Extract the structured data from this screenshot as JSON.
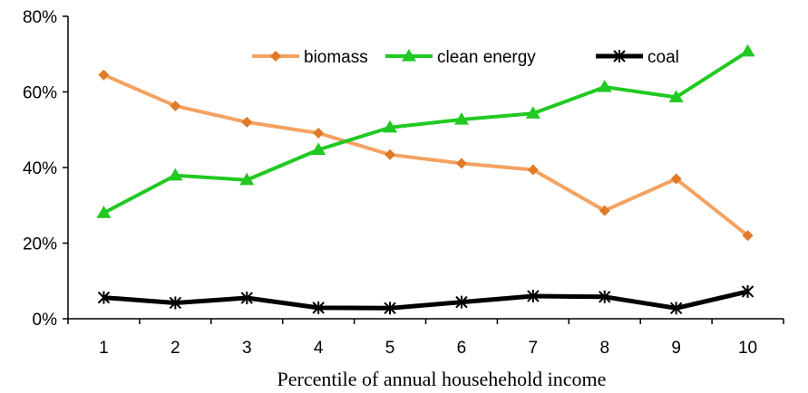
{
  "chart_data": {
    "type": "line",
    "xlabel": "Percentile of annual househehold income",
    "ylabel": "",
    "x": [
      1,
      2,
      3,
      4,
      5,
      6,
      7,
      8,
      9,
      10
    ],
    "x_ticks": [
      "1",
      "2",
      "3",
      "4",
      "5",
      "6",
      "7",
      "8",
      "9",
      "10"
    ],
    "ylim": [
      0,
      0.8
    ],
    "y_ticks": [
      {
        "value": 0,
        "label": "0%"
      },
      {
        "value": 0.2,
        "label": "20%"
      },
      {
        "value": 0.4,
        "label": "40%"
      },
      {
        "value": 0.6,
        "label": "60%"
      },
      {
        "value": 0.8,
        "label": "80%"
      }
    ],
    "grid": false,
    "legend": "top-center",
    "series": [
      {
        "name": "biomass",
        "color": "#F4A261",
        "marker_color": "#E07A28",
        "marker": "diamond",
        "values": [
          0.645,
          0.563,
          0.52,
          0.491,
          0.434,
          0.411,
          0.394,
          0.286,
          0.37,
          0.22
        ]
      },
      {
        "name": "clean energy",
        "color": "#22C922",
        "marker_color": "#22C922",
        "marker": "triangle",
        "values": [
          0.28,
          0.379,
          0.367,
          0.447,
          0.506,
          0.527,
          0.543,
          0.613,
          0.586,
          0.707
        ]
      },
      {
        "name": "coal",
        "color": "#000000",
        "marker_color": "#000000",
        "marker": "asterisk",
        "values": [
          0.056,
          0.042,
          0.055,
          0.029,
          0.028,
          0.044,
          0.06,
          0.058,
          0.028,
          0.072
        ]
      }
    ]
  }
}
